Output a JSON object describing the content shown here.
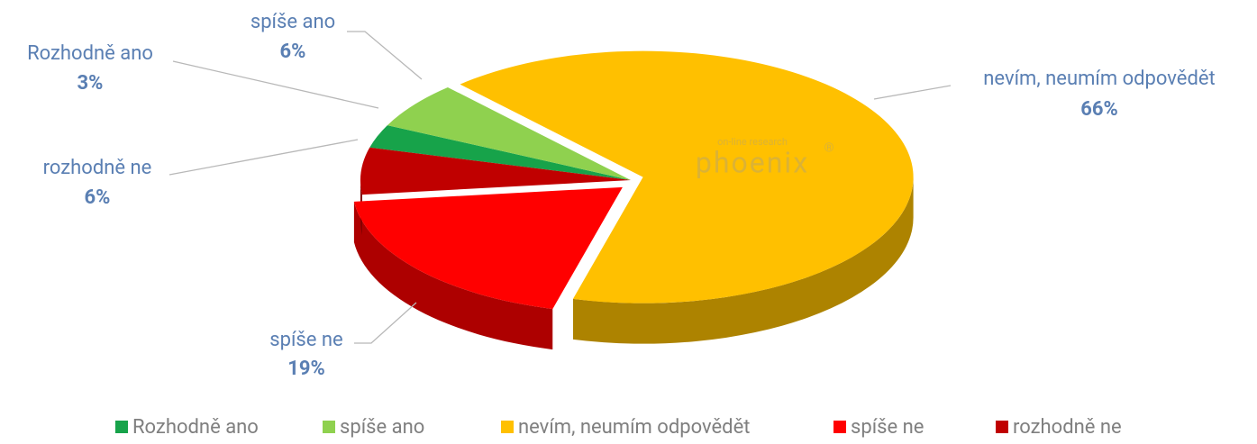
{
  "chart_data": {
    "type": "pie",
    "categories": [
      "Rozhodně ano",
      "spíše ano",
      "nevím, neumím odpovědět",
      "spíše ne",
      "rozhodně ne"
    ],
    "values": [
      3,
      6,
      66,
      19,
      6
    ],
    "value_labels": [
      "3%",
      "6%",
      "66%",
      "19%",
      "6%"
    ],
    "colors": [
      "#17a34a",
      "#8fd14f",
      "#ffc000",
      "#ff0000",
      "#c00000"
    ],
    "watermark": "phoenix",
    "watermark_sub": "on-line research",
    "watermark_mark": "®",
    "legend": "bottom"
  }
}
